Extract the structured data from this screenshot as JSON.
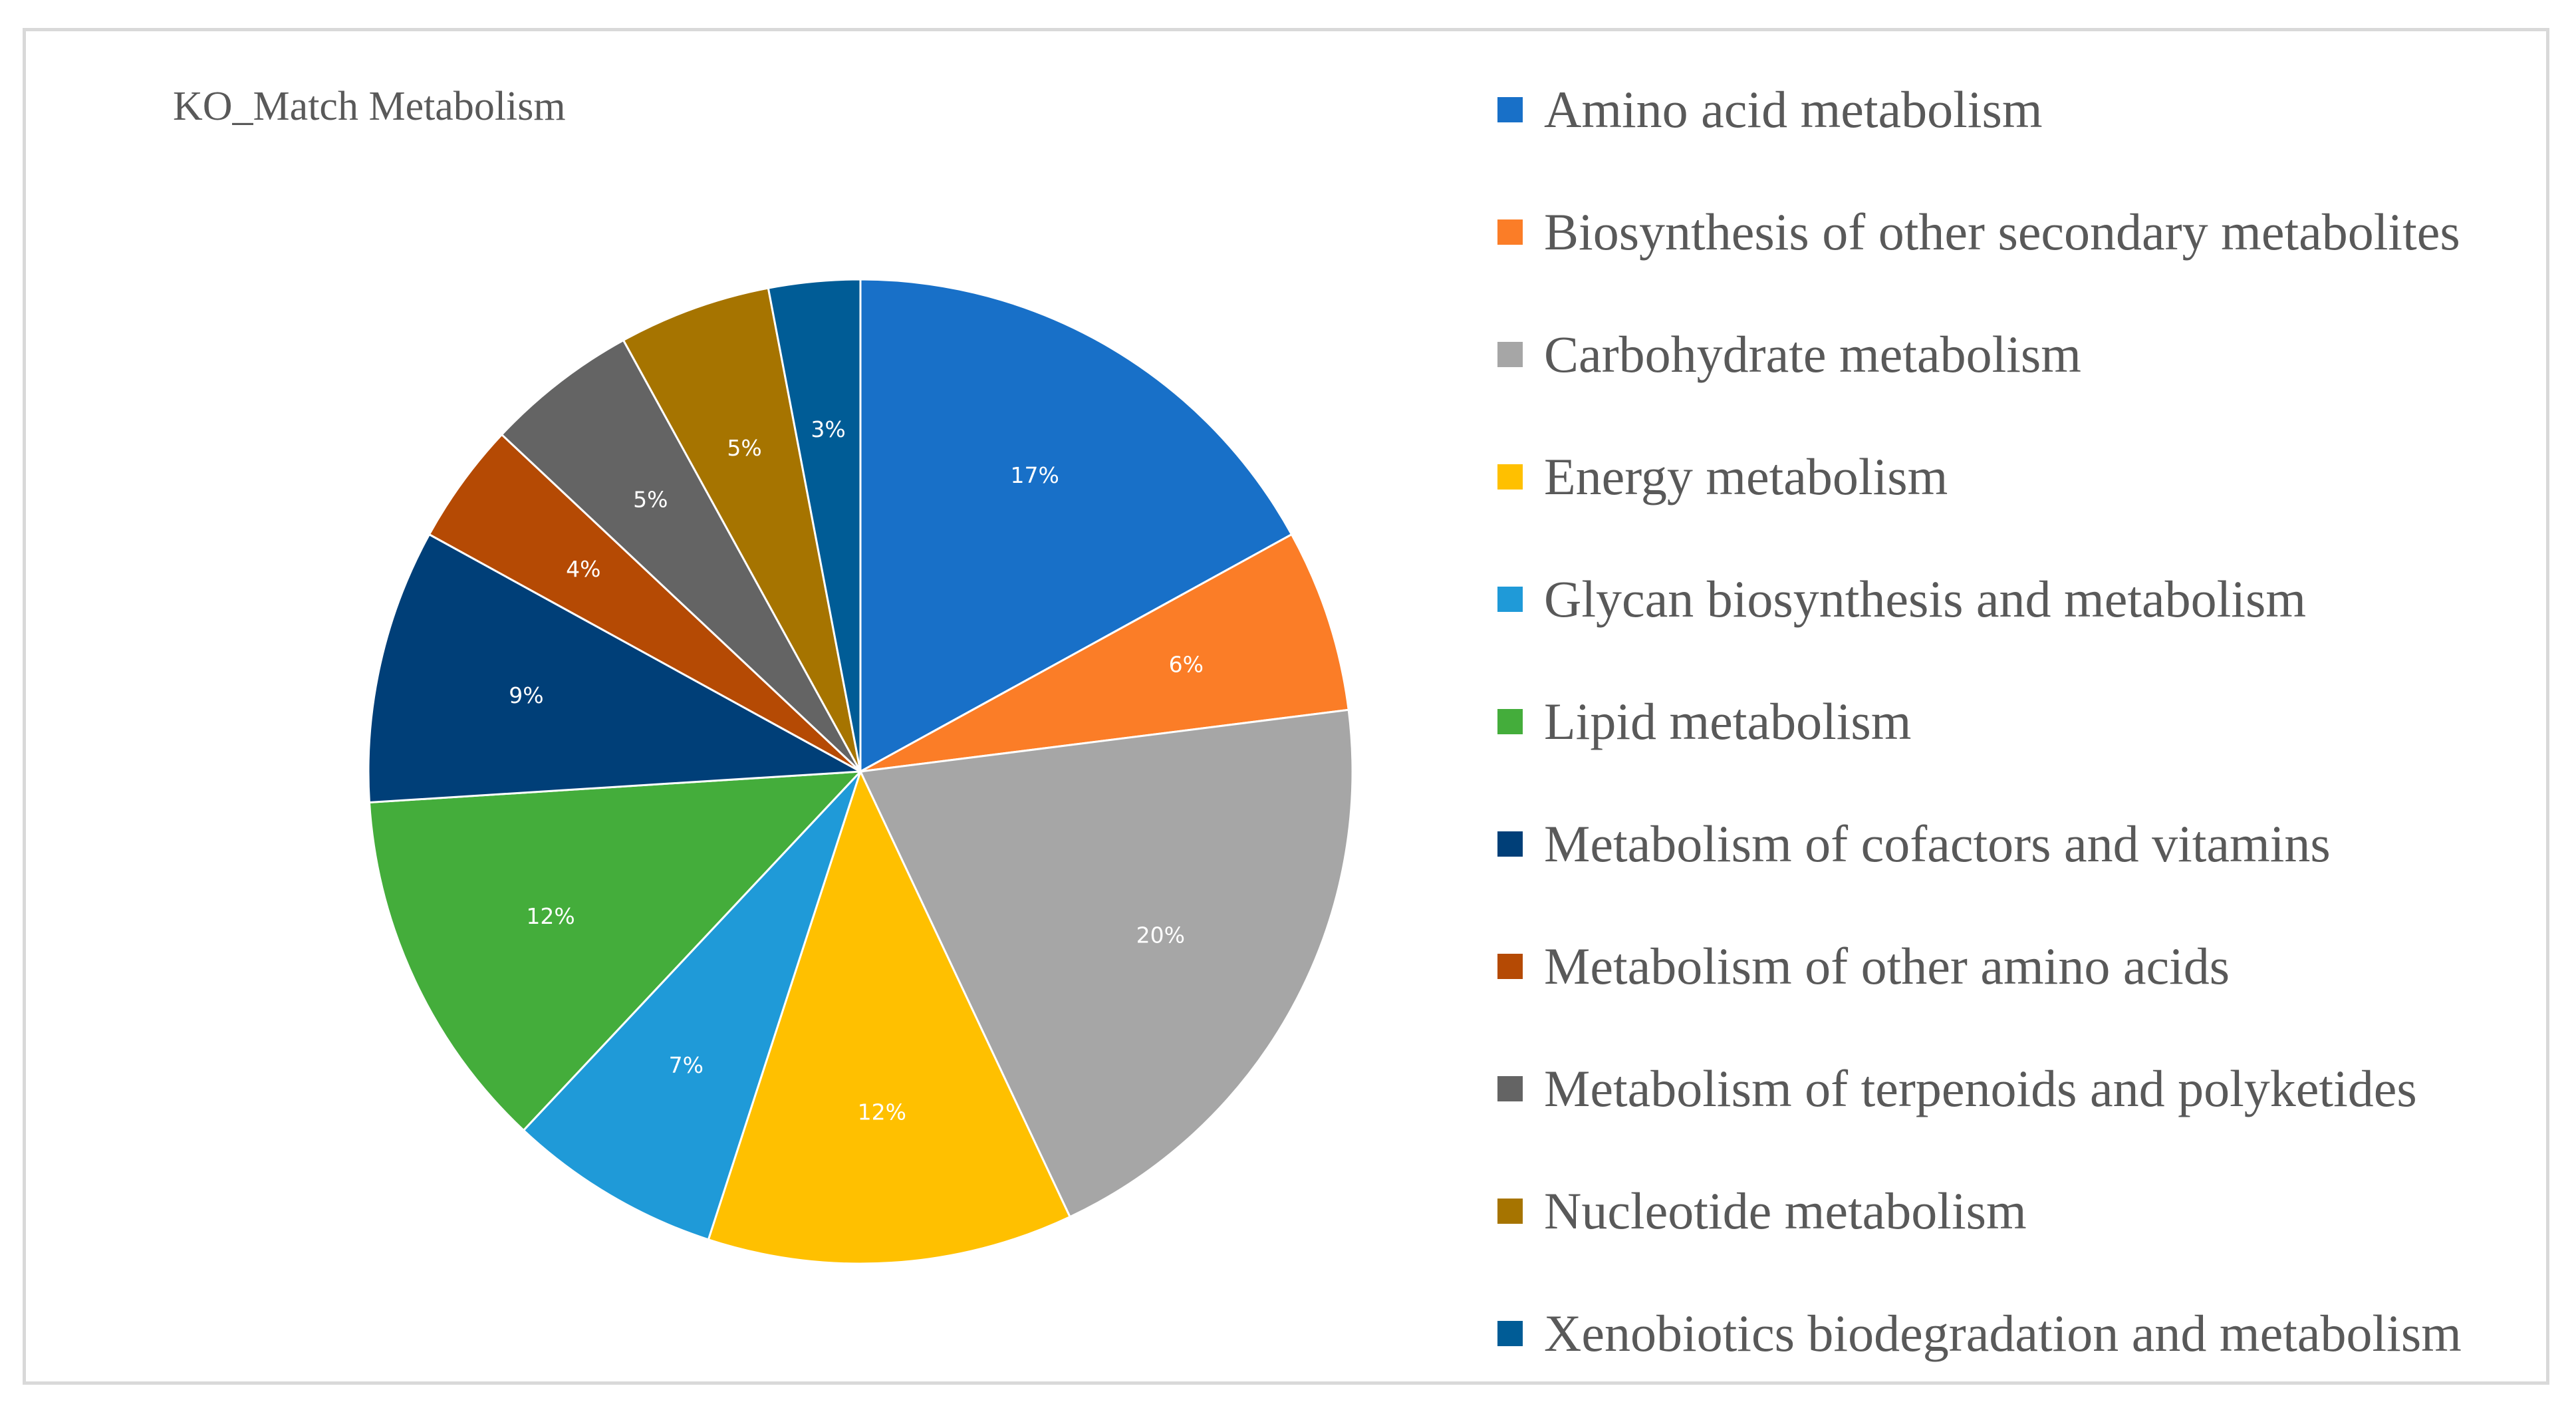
{
  "chart_data": {
    "type": "pie",
    "title": "KO_Match Metabolism",
    "categories": [
      "Amino acid metabolism",
      "Biosynthesis of other secondary metabolites",
      "Carbohydrate metabolism",
      "Energy metabolism",
      "Glycan biosynthesis and metabolism",
      "Lipid metabolism",
      "Metabolism of cofactors and vitamins",
      "Metabolism of other amino acids",
      "Metabolism of terpenoids and polyketides",
      "Nucleotide metabolism",
      "Xenobiotics biodegradation and metabolism"
    ],
    "values": [
      17,
      6,
      20,
      12,
      7,
      12,
      9,
      4,
      5,
      5,
      3
    ],
    "labels": [
      "17%",
      "6%",
      "20%",
      "12%",
      "7%",
      "12%",
      "9%",
      "4%",
      "5%",
      "5%",
      "3%"
    ],
    "colors": [
      "#1870c8",
      "#fb7d27",
      "#a6a6a6",
      "#ffc000",
      "#1f9ad8",
      "#44ad3b",
      "#003f78",
      "#b54a04",
      "#646464",
      "#a67400",
      "#005c96"
    ],
    "start_angle_deg": 0,
    "direction": "clockwise",
    "legend_position": "right"
  }
}
